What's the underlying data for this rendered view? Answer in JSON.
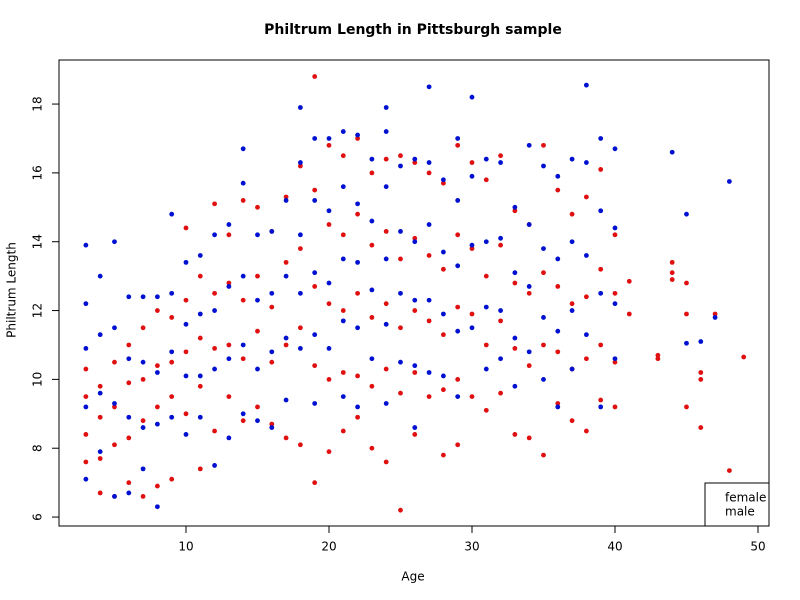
{
  "chart_data": {
    "type": "scatter",
    "title": "Philtrum Length in Pittsburgh sample",
    "x_label": "Age",
    "y_label": "Philtrum Length",
    "xlim": [
      1.12,
      50.77
    ],
    "ylim": [
      5.74,
      19.28
    ],
    "xticks": [
      10,
      20,
      30,
      40,
      50
    ],
    "yticks": [
      6,
      8,
      10,
      12,
      14,
      16,
      18
    ],
    "legend": "bottomright",
    "series": [
      {
        "name": "female",
        "color": "#e01010",
        "x": [
          3,
          3,
          3,
          3,
          4,
          4,
          4,
          4,
          5,
          5,
          5,
          5,
          6,
          6,
          6,
          6,
          7,
          7,
          7,
          7,
          8,
          8,
          8,
          8,
          9,
          9,
          9,
          9,
          10,
          10,
          10,
          10,
          11,
          11,
          11,
          11,
          12,
          12,
          12,
          12,
          13,
          13,
          13,
          13,
          14,
          14,
          14,
          14,
          15,
          15,
          15,
          15,
          16,
          16,
          16,
          16,
          17,
          17,
          17,
          17,
          18,
          18,
          18,
          18,
          19,
          19,
          19,
          19,
          19,
          20,
          20,
          20,
          20,
          20,
          21,
          21,
          21,
          21,
          21,
          22,
          22,
          22,
          22,
          22,
          23,
          23,
          23,
          23,
          23,
          24,
          24,
          24,
          24,
          24,
          25,
          25,
          25,
          25,
          25,
          26,
          26,
          26,
          26,
          26,
          27,
          27,
          27,
          27,
          28,
          28,
          28,
          28,
          28,
          29,
          29,
          29,
          29,
          29,
          30,
          30,
          30,
          30,
          31,
          31,
          31,
          31,
          32,
          32,
          32,
          32,
          33,
          33,
          33,
          33,
          34,
          34,
          34,
          34,
          35,
          35,
          35,
          35,
          36,
          36,
          36,
          36,
          37,
          37,
          37,
          37,
          38,
          38,
          38,
          38,
          39,
          39,
          39,
          39,
          40,
          40,
          40,
          40,
          41,
          41,
          43,
          43,
          44,
          44,
          44,
          45,
          45,
          45,
          46,
          46,
          46,
          47,
          48,
          49
        ],
        "values": [
          10.3,
          9.5,
          8.4,
          7.6,
          9.8,
          8.9,
          7.7,
          6.7,
          10.5,
          9.2,
          8.1,
          6.6,
          11.0,
          9.9,
          8.3,
          7.0,
          11.5,
          10.0,
          8.8,
          6.6,
          12.0,
          10.4,
          9.2,
          6.9,
          11.8,
          10.5,
          9.5,
          7.1,
          14.4,
          12.3,
          10.8,
          9.0,
          13.0,
          11.2,
          9.8,
          7.4,
          15.1,
          12.5,
          10.9,
          8.5,
          14.2,
          12.8,
          11.0,
          9.5,
          15.2,
          12.3,
          10.6,
          8.8,
          15.0,
          13.0,
          11.4,
          9.2,
          14.3,
          12.1,
          10.5,
          8.7,
          15.3,
          13.4,
          11.0,
          8.3,
          16.2,
          13.8,
          11.5,
          8.1,
          18.8,
          15.5,
          12.7,
          10.4,
          7.0,
          16.8,
          14.5,
          12.2,
          10.0,
          7.9,
          16.5,
          14.2,
          12.0,
          10.2,
          8.5,
          17.0,
          14.8,
          12.5,
          10.1,
          8.9,
          16.0,
          13.9,
          11.8,
          9.8,
          8.0,
          16.4,
          14.3,
          12.2,
          10.3,
          7.6,
          16.5,
          13.5,
          11.5,
          9.6,
          6.2,
          16.3,
          14.1,
          12.0,
          10.2,
          8.4,
          16.0,
          13.6,
          11.7,
          9.5,
          15.7,
          13.2,
          11.3,
          9.7,
          7.8,
          16.8,
          14.2,
          12.1,
          10.0,
          8.1,
          16.3,
          13.8,
          11.9,
          9.5,
          15.8,
          13.0,
          11.0,
          9.1,
          16.5,
          13.9,
          11.7,
          9.6,
          14.9,
          12.8,
          10.9,
          8.4,
          14.5,
          12.5,
          10.4,
          8.3,
          16.8,
          13.1,
          11.0,
          7.8,
          15.5,
          12.7,
          10.8,
          9.3,
          14.8,
          12.2,
          10.3,
          8.8,
          15.3,
          12.4,
          10.6,
          8.5,
          16.1,
          13.2,
          11.0,
          9.4,
          14.2,
          12.5,
          10.5,
          9.2,
          12.85,
          11.9,
          10.7,
          10.6,
          13.4,
          13.1,
          12.9,
          12.8,
          11.9,
          9.2,
          10.2,
          10.0,
          8.6,
          11.9,
          7.35,
          10.65
        ]
      },
      {
        "name": "male",
        "color": "#0010d0",
        "x": [
          3,
          3,
          3,
          3,
          3,
          4,
          4,
          4,
          4,
          5,
          5,
          5,
          5,
          6,
          6,
          6,
          6,
          7,
          7,
          7,
          7,
          8,
          8,
          8,
          8,
          9,
          9,
          9,
          9,
          10,
          10,
          10,
          10,
          11,
          11,
          11,
          11,
          12,
          12,
          12,
          12,
          13,
          13,
          13,
          13,
          14,
          14,
          14,
          14,
          14,
          15,
          15,
          15,
          15,
          16,
          16,
          16,
          16,
          17,
          17,
          17,
          17,
          18,
          18,
          18,
          18,
          18,
          19,
          19,
          19,
          19,
          19,
          20,
          20,
          20,
          20,
          21,
          21,
          21,
          21,
          21,
          22,
          22,
          22,
          22,
          22,
          23,
          23,
          23,
          23,
          24,
          24,
          24,
          24,
          24,
          24,
          25,
          25,
          25,
          25,
          26,
          26,
          26,
          26,
          26,
          27,
          27,
          27,
          27,
          27,
          28,
          28,
          28,
          28,
          29,
          29,
          29,
          29,
          29,
          30,
          30,
          30,
          30,
          31,
          31,
          31,
          31,
          32,
          32,
          32,
          32,
          33,
          33,
          33,
          33,
          34,
          34,
          34,
          34,
          35,
          35,
          35,
          35,
          36,
          36,
          36,
          36,
          37,
          37,
          37,
          37,
          38,
          38,
          38,
          38,
          39,
          39,
          39,
          39,
          40,
          40,
          40,
          40,
          44,
          45,
          45,
          46,
          47,
          48
        ],
        "values": [
          13.9,
          12.2,
          10.9,
          9.2,
          7.1,
          13.0,
          11.3,
          9.6,
          7.9,
          14.0,
          11.5,
          9.3,
          6.6,
          12.4,
          10.6,
          8.9,
          6.7,
          12.4,
          10.5,
          8.6,
          7.4,
          12.4,
          10.2,
          8.7,
          6.3,
          14.8,
          12.5,
          10.8,
          8.9,
          13.4,
          11.6,
          10.1,
          8.4,
          13.6,
          11.9,
          10.1,
          8.9,
          14.2,
          12.0,
          10.3,
          7.5,
          14.5,
          12.7,
          10.6,
          8.3,
          16.7,
          15.7,
          13.0,
          11.0,
          9.0,
          14.2,
          12.3,
          10.3,
          8.8,
          14.3,
          12.5,
          10.8,
          8.6,
          15.2,
          13.0,
          11.2,
          9.4,
          17.9,
          16.3,
          14.2,
          12.5,
          10.9,
          17.0,
          15.2,
          13.1,
          11.3,
          9.3,
          17.0,
          14.9,
          12.8,
          10.9,
          17.2,
          15.6,
          13.5,
          11.7,
          9.5,
          17.1,
          15.1,
          13.4,
          11.5,
          9.2,
          16.4,
          14.6,
          12.6,
          10.6,
          17.9,
          17.2,
          15.6,
          13.5,
          11.6,
          9.3,
          16.2,
          14.3,
          12.5,
          10.5,
          16.4,
          14.0,
          12.3,
          10.4,
          8.6,
          18.5,
          16.3,
          14.5,
          12.3,
          10.2,
          15.8,
          13.7,
          11.9,
          10.1,
          17.0,
          15.2,
          13.3,
          11.4,
          9.5,
          18.2,
          15.9,
          13.9,
          11.5,
          16.4,
          14.0,
          12.1,
          10.3,
          16.3,
          14.1,
          12.0,
          10.6,
          15.0,
          13.1,
          11.2,
          9.8,
          16.8,
          14.5,
          12.7,
          10.8,
          16.2,
          13.8,
          11.8,
          10.0,
          15.9,
          13.5,
          11.4,
          9.2,
          16.4,
          14.0,
          12.0,
          10.3,
          18.55,
          16.3,
          13.6,
          11.3,
          17.0,
          14.9,
          12.5,
          9.2,
          16.7,
          14.4,
          12.2,
          10.6,
          16.6,
          14.8,
          11.05,
          11.1,
          11.8,
          15.75
        ]
      }
    ]
  }
}
